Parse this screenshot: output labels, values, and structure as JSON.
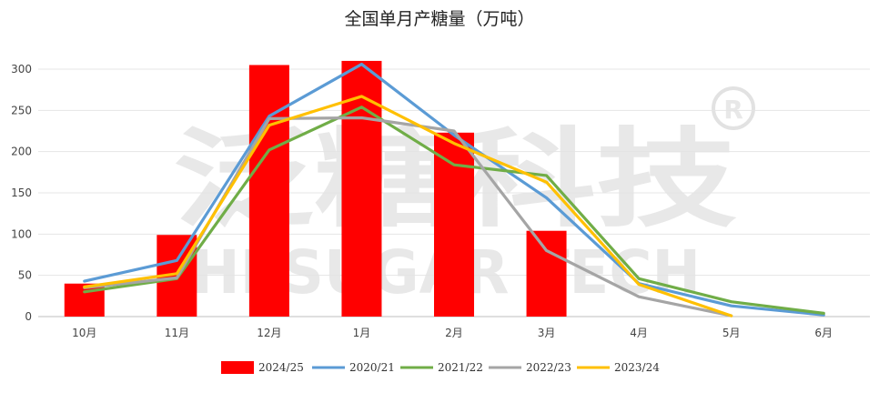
{
  "chart_data": {
    "type": "bar",
    "title": "全国单月产糖量（万吨）",
    "categories": [
      "10月",
      "11月",
      "12月",
      "1月",
      "2月",
      "3月",
      "4月",
      "5月",
      "6月"
    ],
    "ylim": [
      0,
      300
    ],
    "yticks": [
      0,
      50,
      100,
      150,
      200,
      250,
      300
    ],
    "grid": true,
    "legend_position": "bottom",
    "bar_series": {
      "name": "2024/25",
      "color": "#ff0000",
      "values": [
        40,
        99,
        305,
        310,
        223,
        104,
        null,
        null,
        null
      ]
    },
    "line_series": [
      {
        "name": "2020/21",
        "color": "#5b9bd5",
        "values": [
          43,
          68,
          243,
          306,
          220,
          144,
          40,
          13,
          2
        ]
      },
      {
        "name": "2021/22",
        "color": "#70ad47",
        "values": [
          30,
          46,
          202,
          254,
          184,
          171,
          46,
          18,
          4
        ]
      },
      {
        "name": "2022/23",
        "color": "#a5a5a5",
        "values": [
          35,
          47,
          240,
          241,
          225,
          80,
          24,
          1,
          null
        ]
      },
      {
        "name": "2023/24",
        "color": "#ffc000",
        "values": [
          36,
          52,
          232,
          267,
          210,
          163,
          39,
          1,
          null
        ]
      }
    ],
    "watermark": "泛糖科技 HI SUGAR TECH"
  }
}
